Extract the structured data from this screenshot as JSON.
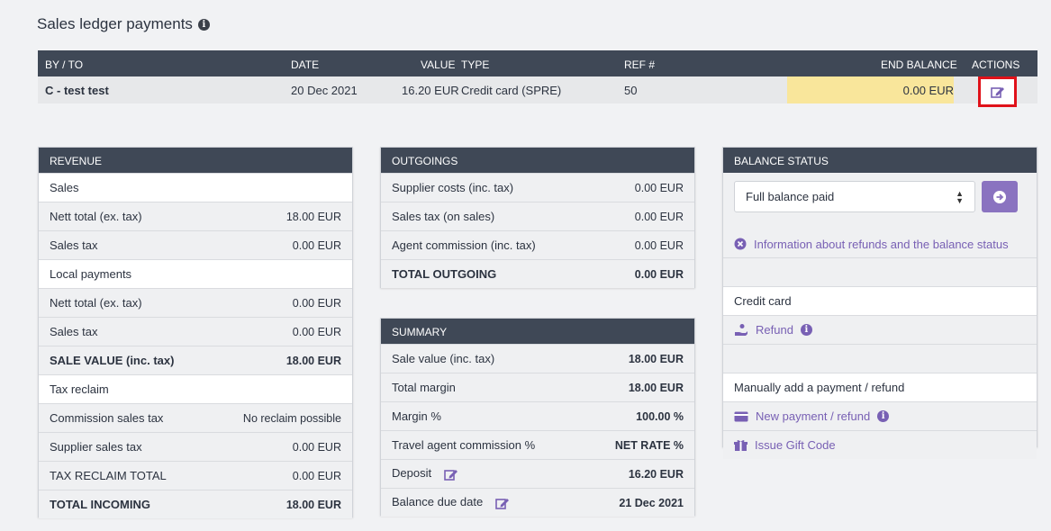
{
  "page": {
    "title": "Sales ledger payments",
    "info_icon": "i"
  },
  "ledger": {
    "headers": {
      "by_to": "BY / TO",
      "date": "DATE",
      "value": "VALUE",
      "type": "TYPE",
      "ref": "REF #",
      "end_balance": "END BALANCE",
      "actions": "ACTIONS"
    },
    "row": {
      "by_to": "C - test test",
      "date": "20 Dec 2021",
      "value": "16.20 EUR",
      "type": "Credit card (SPRE)",
      "ref": "50",
      "end_balance": "0.00 EUR"
    }
  },
  "revenue": {
    "title": "REVENUE",
    "rows": [
      {
        "label": "Sales",
        "value": ""
      },
      {
        "label": "Nett total (ex. tax)",
        "value": "18.00 EUR"
      },
      {
        "label": "Sales tax",
        "value": "0.00 EUR"
      },
      {
        "label": "Local payments",
        "value": ""
      },
      {
        "label": "Nett total (ex. tax)",
        "value": "0.00 EUR"
      },
      {
        "label": "Sales tax",
        "value": "0.00 EUR"
      },
      {
        "label": "SALE VALUE (inc. tax)",
        "value": "18.00 EUR"
      },
      {
        "label": "Tax reclaim",
        "value": ""
      },
      {
        "label": "Commission sales tax",
        "value": "No reclaim possible"
      },
      {
        "label": "Supplier sales tax",
        "value": "0.00 EUR"
      },
      {
        "label": "TAX RECLAIM TOTAL",
        "value": "0.00 EUR"
      },
      {
        "label": "TOTAL INCOMING",
        "value": "18.00 EUR"
      }
    ]
  },
  "outgoings": {
    "title": "OUTGOINGS",
    "rows": [
      {
        "label": "Supplier costs (inc. tax)",
        "value": "0.00 EUR"
      },
      {
        "label": "Sales tax (on sales)",
        "value": "0.00 EUR"
      },
      {
        "label": "Agent commission (inc. tax)",
        "value": "0.00 EUR"
      },
      {
        "label": "TOTAL OUTGOING",
        "value": "0.00 EUR"
      }
    ]
  },
  "summary": {
    "title": "SUMMARY",
    "rows": [
      {
        "label": "Sale value (inc. tax)",
        "value": "18.00 EUR"
      },
      {
        "label": "Total margin",
        "value": "18.00 EUR"
      },
      {
        "label": "Margin %",
        "value": "100.00 %"
      },
      {
        "label": "Travel agent commission %",
        "value": "NET RATE %"
      },
      {
        "label": "Deposit",
        "value": "16.20 EUR"
      },
      {
        "label": "Balance due date",
        "value": "21 Dec 2021"
      }
    ]
  },
  "balance_status": {
    "title": "BALANCE STATUS",
    "select_value": "Full balance paid",
    "info_link": "Information about refunds and the balance status",
    "credit_card_label": "Credit card",
    "refund_link": "Refund",
    "manual_label": "Manually add a payment / refund",
    "new_payment_link": "New payment / refund",
    "gift_code_link": "Issue Gift Code"
  },
  "colors": {
    "header": "#3f4856",
    "accent": "#7860b4",
    "highlight": "#f9e69b",
    "alert_border": "#e0121a"
  }
}
